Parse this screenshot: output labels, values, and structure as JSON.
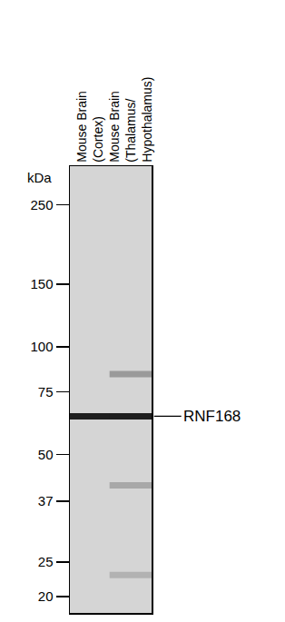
{
  "chart_data": {
    "type": "blot",
    "y_label": "kDa",
    "categories": [
      "Mouse Brain (Cortex)",
      "Mouse Brain (Thalamus/ Hypothalamus)"
    ],
    "series": [
      {
        "name": "RNF168",
        "color": "#1e1e1e",
        "values": [
          64,
          64
        ]
      },
      {
        "color": "#9a9a9a",
        "values": [
          null,
          84
        ]
      },
      {
        "color": "#a8a8a8",
        "values": [
          null,
          41
        ]
      },
      {
        "color": "#b2b2b2",
        "values": [
          null,
          23
        ]
      }
    ],
    "log": "y",
    "ylim": [
      18,
      321
    ],
    "yticks": [
      250,
      150,
      100,
      75,
      50,
      37,
      25,
      20
    ],
    "grid": false,
    "tick_labels": true
  }
}
